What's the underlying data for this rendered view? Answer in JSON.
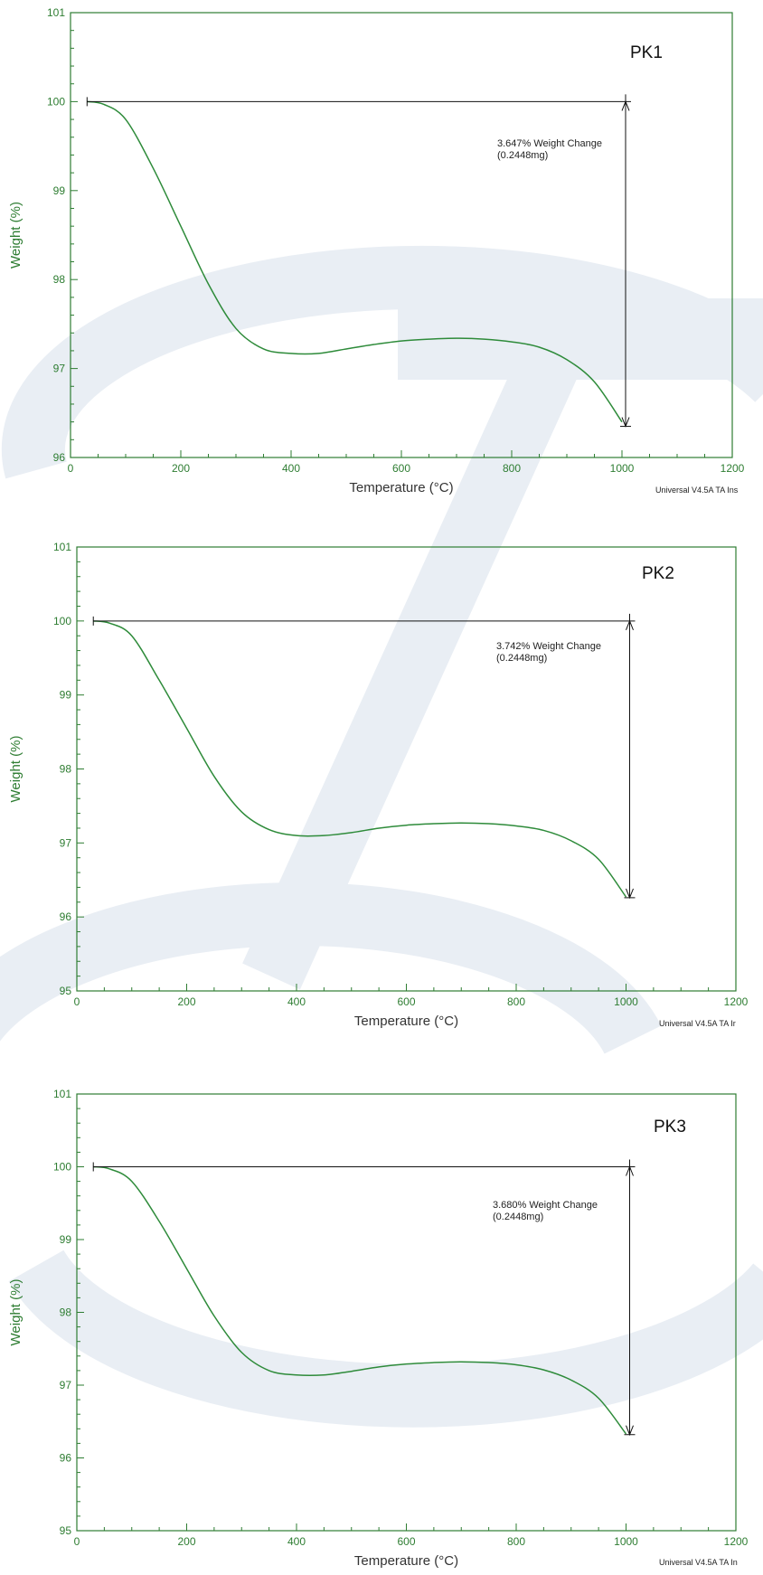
{
  "colors": {
    "axis": "#2e7d32",
    "curve": "#2e8b3a",
    "marker": "#111111",
    "watermark": "#e9eef4"
  },
  "chart_data": [
    {
      "type": "line",
      "title": "",
      "sample_label": "PK1",
      "xlabel": "Temperature (°C)",
      "ylabel": "Weight (%)",
      "xlim": [
        0,
        1200
      ],
      "ylim": [
        96,
        101
      ],
      "xticks": [
        0,
        200,
        400,
        600,
        800,
        1000,
        1200
      ],
      "yticks": [
        96,
        97,
        98,
        99,
        100,
        101
      ],
      "series": [
        {
          "x": [
            30,
            60,
            100,
            150,
            200,
            250,
            300,
            350,
            400,
            450,
            500,
            550,
            600,
            650,
            700,
            750,
            800,
            850,
            900,
            950,
            1000
          ],
          "values": [
            100.0,
            99.97,
            99.8,
            99.25,
            98.6,
            97.95,
            97.45,
            97.22,
            97.17,
            97.17,
            97.22,
            97.27,
            97.31,
            97.33,
            97.34,
            97.33,
            97.3,
            97.24,
            97.1,
            96.85,
            96.4
          ]
        }
      ],
      "annotation": {
        "text_line1": "3.647% Weight Change",
        "text_line2": "(0.2448mg)",
        "y_start": 100.0,
        "y_end": 96.35,
        "x_start": 30,
        "x_end": 1000
      },
      "footer": "Universal V4.5A TA Ins"
    },
    {
      "type": "line",
      "title": "",
      "sample_label": "PK2",
      "xlabel": "Temperature (°C)",
      "ylabel": "Weight (%)",
      "xlim": [
        0,
        1200
      ],
      "ylim": [
        95,
        101
      ],
      "xticks": [
        0,
        200,
        400,
        600,
        800,
        1000,
        1200
      ],
      "yticks": [
        95,
        96,
        97,
        98,
        99,
        100,
        101
      ],
      "series": [
        {
          "x": [
            30,
            60,
            100,
            150,
            200,
            250,
            300,
            350,
            400,
            450,
            500,
            550,
            600,
            650,
            700,
            750,
            800,
            850,
            900,
            950,
            1000
          ],
          "values": [
            100.0,
            99.97,
            99.8,
            99.2,
            98.55,
            97.9,
            97.42,
            97.18,
            97.1,
            97.1,
            97.14,
            97.2,
            97.24,
            97.26,
            97.27,
            97.26,
            97.23,
            97.17,
            97.03,
            96.78,
            96.27
          ]
        }
      ],
      "annotation": {
        "text_line1": "3.742% Weight Change",
        "text_line2": "(0.2448mg)",
        "y_start": 100.0,
        "y_end": 96.26,
        "x_start": 30,
        "x_end": 1000
      },
      "footer": "Universal V4.5A TA Ir"
    },
    {
      "type": "line",
      "title": "",
      "sample_label": "PK3",
      "xlabel": "Temperature (°C)",
      "ylabel": "Weight (%)",
      "xlim": [
        0,
        1200
      ],
      "ylim": [
        95,
        101
      ],
      "xticks": [
        0,
        200,
        400,
        600,
        800,
        1000,
        1200
      ],
      "yticks": [
        95,
        96,
        97,
        98,
        99,
        100,
        101
      ],
      "series": [
        {
          "x": [
            30,
            60,
            100,
            150,
            200,
            250,
            300,
            350,
            400,
            450,
            500,
            550,
            600,
            650,
            700,
            750,
            800,
            850,
            900,
            950,
            1000
          ],
          "values": [
            100.0,
            99.97,
            99.8,
            99.25,
            98.6,
            97.95,
            97.45,
            97.2,
            97.14,
            97.14,
            97.19,
            97.25,
            97.29,
            97.31,
            97.32,
            97.31,
            97.28,
            97.21,
            97.07,
            96.82,
            96.33
          ]
        }
      ],
      "annotation": {
        "text_line1": "3.680% Weight Change",
        "text_line2": "(0.2448mg)",
        "y_start": 100.0,
        "y_end": 96.32,
        "x_start": 30,
        "x_end": 1000
      },
      "footer": "Universal V4.5A TA In"
    }
  ]
}
